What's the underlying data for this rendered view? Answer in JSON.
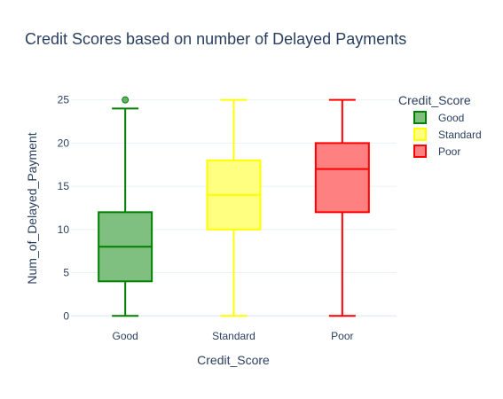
{
  "chart_data": {
    "type": "box",
    "title": "Credit Scores based on number of Delayed Payments",
    "xlabel": "Credit_Score",
    "ylabel": "Num_of_Delayed_Payment",
    "ylim": [
      -1,
      26.3
    ],
    "yticks": [
      0,
      5,
      10,
      15,
      20,
      25
    ],
    "grid": true,
    "legend": {
      "title": "Credit_Score",
      "placement": "top-right"
    },
    "categories": [
      "Good",
      "Standard",
      "Poor"
    ],
    "series": [
      {
        "name": "Good",
        "color": "#008000",
        "fill": "#7fbf7f",
        "min": 0,
        "q1": 4,
        "median": 8,
        "q3": 12,
        "max": 24,
        "outliers": [
          25
        ]
      },
      {
        "name": "Standard",
        "color": "#ffff00",
        "fill": "#ffff80",
        "min": 0,
        "q1": 10,
        "median": 14,
        "q3": 18,
        "max": 25,
        "outliers": []
      },
      {
        "name": "Poor",
        "color": "#ff0000",
        "fill": "#ff8080",
        "min": 0,
        "q1": 12,
        "median": 17,
        "q3": 20,
        "max": 25,
        "outliers": []
      }
    ]
  }
}
